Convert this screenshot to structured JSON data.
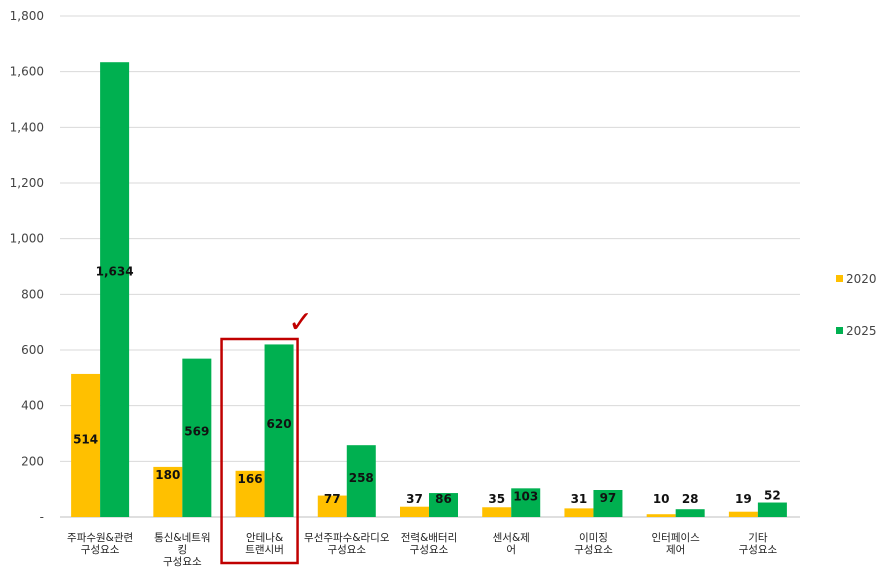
{
  "chart_data": {
    "type": "bar",
    "categories": [
      [
        "주파수원&관련",
        "구성요소"
      ],
      [
        "통신&네트워",
        "킹",
        "구성요소"
      ],
      [
        "안테나&",
        "트랜시버"
      ],
      [
        "무선주파수&라디오",
        "구성요소"
      ],
      [
        "전력&배터리",
        "구성요소"
      ],
      [
        "센서&제",
        "어"
      ],
      [
        "이미징",
        "구성요소"
      ],
      [
        "인터페이스",
        "제어"
      ],
      [
        "기타",
        "구성요소"
      ]
    ],
    "series": [
      {
        "name": "2020",
        "values": [
          514,
          180,
          166,
          77,
          37,
          35,
          31,
          10,
          19
        ],
        "color": "#ffc000"
      },
      {
        "name": "2025",
        "values": [
          1634,
          569,
          620,
          258,
          86,
          103,
          97,
          28,
          52
        ],
        "color": "#00b050"
      }
    ],
    "data_labels": {
      "2020": [
        "514",
        "180",
        "166",
        "77",
        "37",
        "35",
        "31",
        "10",
        "19"
      ],
      "2025": [
        "1,634",
        "569",
        "620",
        "258",
        "86",
        "103",
        "97",
        "28",
        "52"
      ]
    },
    "ylim": [
      0,
      1800
    ],
    "yticks": [
      "-",
      "200",
      "400",
      "600",
      "800",
      "1,000",
      "1,200",
      "1,400",
      "1,600",
      "1,800"
    ],
    "grid": true,
    "legend_position": "right",
    "highlight": {
      "category_index": 2,
      "box_color": "#c00000",
      "mark": "✓"
    }
  }
}
